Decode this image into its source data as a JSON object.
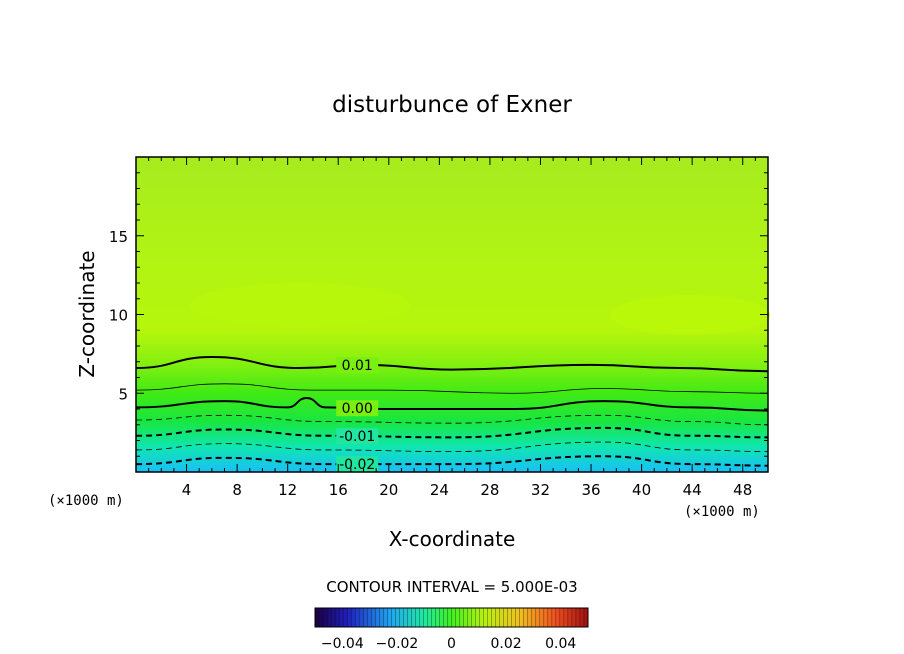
{
  "chart_data": {
    "type": "contour",
    "title": "disturbunce of Exner",
    "xlabel": "X-coordinate",
    "ylabel": "Z-coordinate",
    "x_unit_left": "(×1000 m)",
    "x_unit_right": "(×1000 m)",
    "xlim": [
      0,
      50
    ],
    "ylim": [
      0,
      20
    ],
    "xticks": [
      4,
      8,
      12,
      16,
      20,
      24,
      28,
      32,
      36,
      40,
      44,
      48
    ],
    "yticks": [
      5,
      10,
      15
    ],
    "contour_interval_text": "CONTOUR INTERVAL = 5.000E-03",
    "contours": [
      {
        "level": 0.01,
        "label": "0.01",
        "style": "solid-thick",
        "x": [
          0,
          6,
          13,
          18,
          25,
          36,
          43,
          50
        ],
        "z": [
          6.6,
          7.3,
          6.6,
          6.8,
          6.5,
          6.8,
          6.6,
          6.4
        ]
      },
      {
        "level": 0.005,
        "label": "",
        "style": "solid-thin",
        "x": [
          0,
          7,
          14,
          20,
          30,
          37,
          44,
          50
        ],
        "z": [
          5.2,
          5.6,
          5.2,
          5.2,
          5.0,
          5.3,
          5.1,
          5.0
        ]
      },
      {
        "level": 0.0,
        "label": "0.00",
        "style": "solid-thick",
        "x": [
          0,
          7,
          12,
          13.5,
          15,
          20,
          30,
          37,
          44,
          50
        ],
        "z": [
          4.1,
          4.5,
          4.1,
          4.7,
          4.1,
          4.0,
          4.0,
          4.5,
          4.1,
          3.9
        ]
      },
      {
        "level": -0.005,
        "label": "",
        "style": "dashed-thin",
        "x": [
          0,
          7,
          15,
          25,
          37,
          44,
          50
        ],
        "z": [
          3.3,
          3.6,
          3.2,
          3.1,
          3.6,
          3.2,
          3.0
        ]
      },
      {
        "level": -0.01,
        "label": "-0.01",
        "style": "dashed-thick",
        "x": [
          0,
          7,
          15,
          25,
          37,
          44,
          50
        ],
        "z": [
          2.3,
          2.7,
          2.3,
          2.2,
          2.8,
          2.3,
          2.2
        ]
      },
      {
        "level": -0.015,
        "label": "",
        "style": "dashed-thin",
        "x": [
          0,
          7,
          15,
          25,
          37,
          44,
          50
        ],
        "z": [
          1.4,
          1.8,
          1.4,
          1.3,
          1.9,
          1.4,
          1.3
        ]
      },
      {
        "level": -0.02,
        "label": "-0.02",
        "style": "dashed-thick",
        "x": [
          0,
          7,
          15,
          25,
          37,
          44,
          50
        ],
        "z": [
          0.5,
          0.9,
          0.5,
          0.5,
          1.0,
          0.5,
          0.4
        ]
      }
    ],
    "colorbar": {
      "range": [
        -0.05,
        0.05
      ],
      "ticks": [
        -0.04,
        -0.02,
        0,
        0.02,
        0.04
      ],
      "tick_labels": [
        "−0.04",
        "−0.02",
        "0",
        "0.02",
        "0.04"
      ]
    },
    "colors": {
      "top": "#a8ee1a",
      "upper_band": "#b8f80a",
      "mid": "#60ee10",
      "green": "#18e828",
      "cyan": "#10e8b0",
      "bottom": "#20c8f8"
    }
  }
}
